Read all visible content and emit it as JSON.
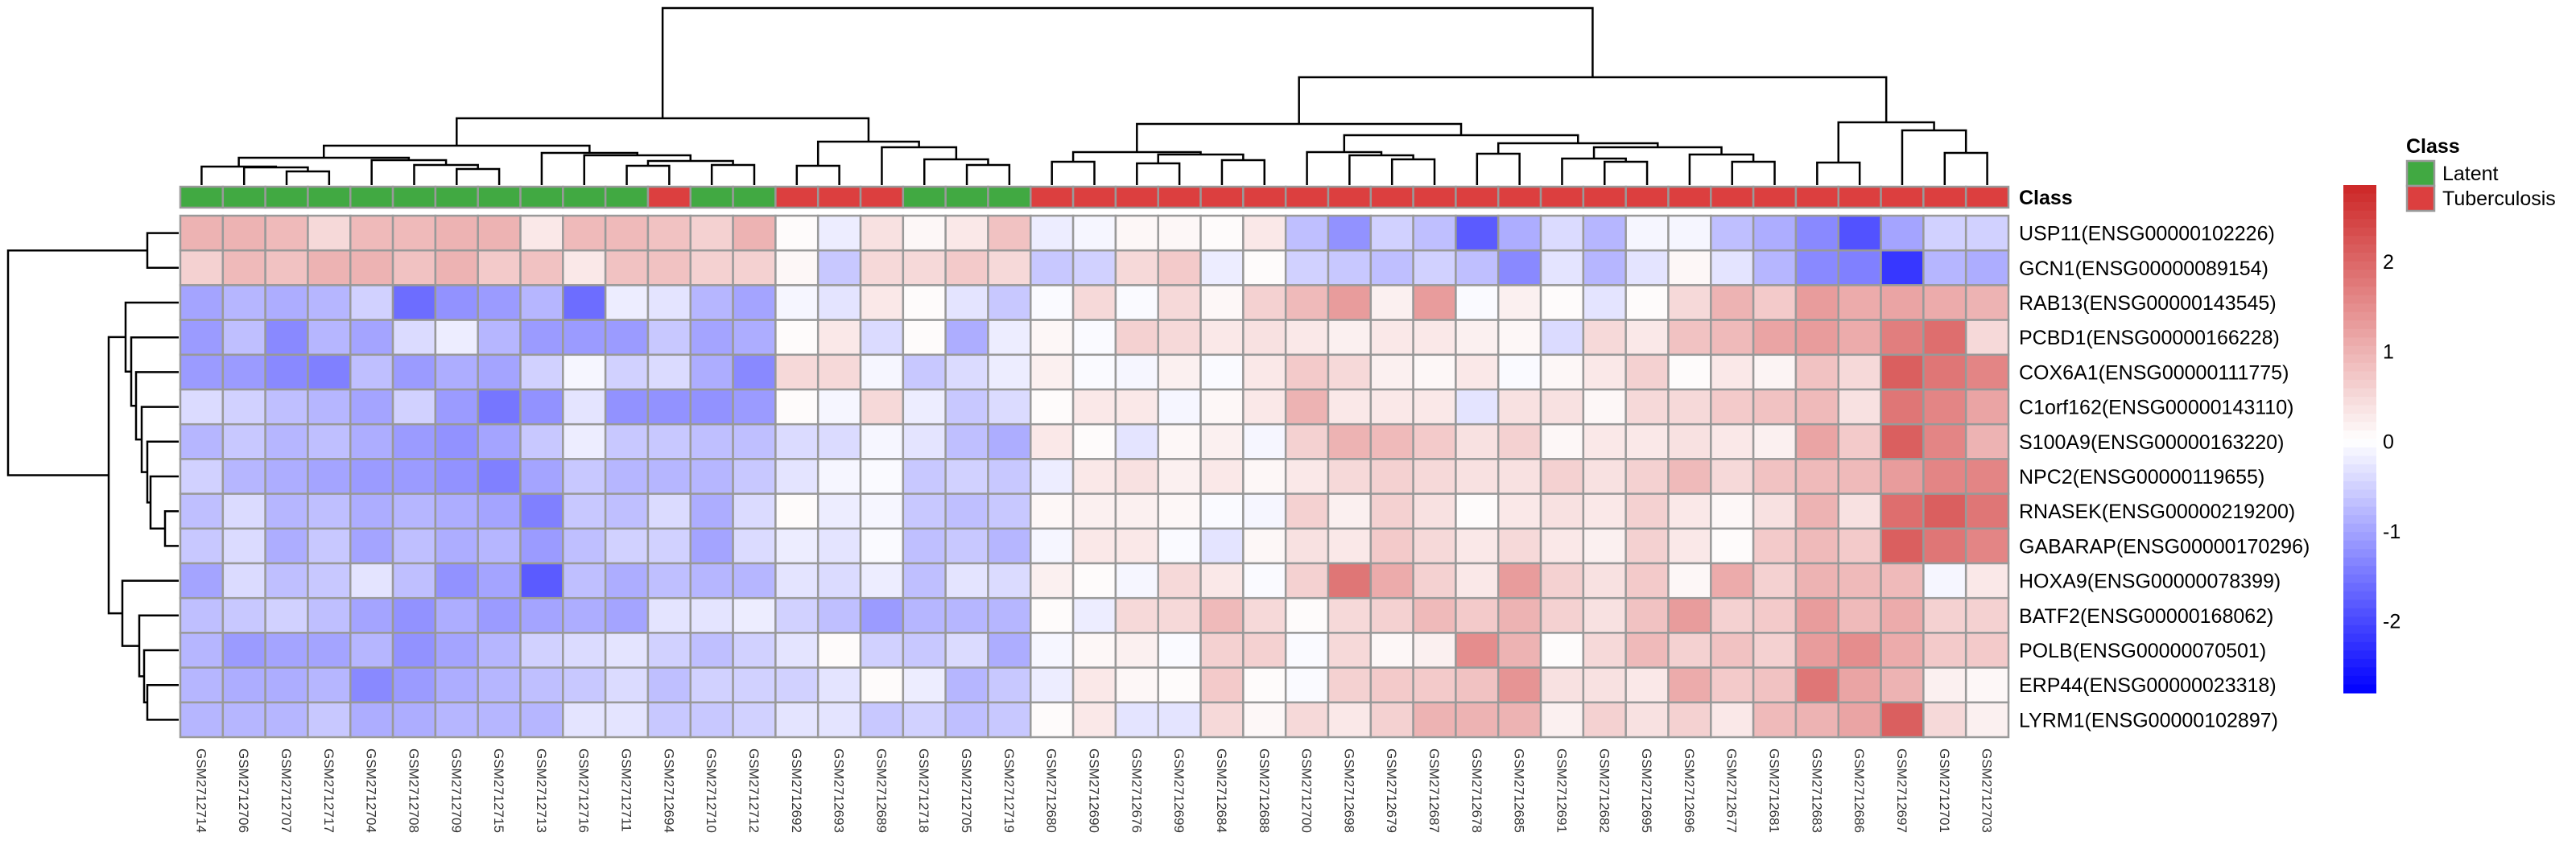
{
  "chart_data": {
    "type": "heatmap",
    "rows": [
      "USP11(ENSG00000102226)",
      "GCN1(ENSG00000089154)",
      "RAB13(ENSG00000143545)",
      "PCBD1(ENSG00000166228)",
      "COX6A1(ENSG00000111775)",
      "C1orf162(ENSG00000143110)",
      "S100A9(ENSG00000163220)",
      "NPC2(ENSG00000119655)",
      "RNASEK(ENSG00000219200)",
      "GABARAP(ENSG00000170296)",
      "HOXA9(ENSG00000078399)",
      "BATF2(ENSG00000168062)",
      "POLB(ENSG00000070501)",
      "ERP44(ENSG00000023318)",
      "LYRM1(ENSG00000102897)"
    ],
    "columns": [
      "GSM2712714",
      "GSM2712706",
      "GSM2712707",
      "GSM2712717",
      "GSM2712704",
      "GSM2712708",
      "GSM2712709",
      "GSM2712715",
      "GSM2712713",
      "GSM2712716",
      "GSM2712711",
      "GSM2712694",
      "GSM2712710",
      "GSM2712712",
      "GSM2712692",
      "GSM2712693",
      "GSM2712689",
      "GSM2712718",
      "GSM2712705",
      "GSM2712719",
      "GSM2712680",
      "GSM2712690",
      "GSM2712676",
      "GSM2712699",
      "GSM2712684",
      "GSM2712688",
      "GSM2712700",
      "GSM2712698",
      "GSM2712679",
      "GSM2712687",
      "GSM2712678",
      "GSM2712685",
      "GSM2712691",
      "GSM2712682",
      "GSM2712695",
      "GSM2712696",
      "GSM2712677",
      "GSM2712681",
      "GSM2712683",
      "GSM2712686",
      "GSM2712697",
      "GSM2712701",
      "GSM2712703"
    ],
    "column_class": [
      "Latent",
      "Latent",
      "Latent",
      "Latent",
      "Latent",
      "Latent",
      "Latent",
      "Latent",
      "Latent",
      "Latent",
      "Latent",
      "Tuberculosis",
      "Latent",
      "Latent",
      "Tuberculosis",
      "Tuberculosis",
      "Tuberculosis",
      "Latent",
      "Latent",
      "Latent",
      "Tuberculosis",
      "Tuberculosis",
      "Tuberculosis",
      "Tuberculosis",
      "Tuberculosis",
      "Tuberculosis",
      "Tuberculosis",
      "Tuberculosis",
      "Tuberculosis",
      "Tuberculosis",
      "Tuberculosis",
      "Tuberculosis",
      "Tuberculosis",
      "Tuberculosis",
      "Tuberculosis",
      "Tuberculosis",
      "Tuberculosis",
      "Tuberculosis",
      "Tuberculosis",
      "Tuberculosis",
      "Tuberculosis",
      "Tuberculosis",
      "Tuberculosis"
    ],
    "values": [
      [
        1.0,
        1.0,
        0.9,
        0.5,
        0.9,
        0.9,
        1.0,
        1.0,
        0.3,
        0.9,
        0.9,
        0.8,
        0.6,
        1.0,
        0.05,
        -0.2,
        0.4,
        0.1,
        0.3,
        0.8,
        -0.2,
        -0.1,
        0.1,
        0.1,
        0.05,
        0.3,
        -0.7,
        -1.2,
        -0.5,
        -0.7,
        -1.8,
        -0.9,
        -0.4,
        -0.8,
        -0.1,
        -0.1,
        -0.7,
        -0.9,
        -1.3,
        -1.9,
        -1.0,
        -0.5,
        -0.5
      ],
      [
        0.6,
        0.9,
        0.8,
        1.0,
        1.0,
        0.8,
        1.0,
        0.7,
        0.8,
        0.3,
        0.8,
        0.8,
        0.6,
        0.6,
        0.1,
        -0.6,
        0.5,
        0.5,
        0.7,
        0.5,
        -0.6,
        -0.5,
        0.5,
        0.7,
        -0.2,
        0.05,
        -0.5,
        -0.6,
        -0.7,
        -0.5,
        -0.7,
        -1.3,
        -0.3,
        -0.8,
        -0.3,
        0.1,
        -0.3,
        -0.8,
        -1.3,
        -1.4,
        -2.2,
        -0.8,
        -0.9
      ],
      [
        -1.0,
        -0.8,
        -0.9,
        -0.8,
        -0.5,
        -1.6,
        -1.2,
        -1.1,
        -0.8,
        -1.6,
        -0.2,
        -0.3,
        -0.8,
        -1.0,
        -0.1,
        -0.3,
        0.3,
        0.05,
        -0.3,
        -0.6,
        -0.05,
        0.5,
        -0.05,
        0.5,
        0.1,
        0.6,
        0.9,
        1.3,
        0.2,
        1.3,
        -0.05,
        0.2,
        0.05,
        -0.3,
        0.05,
        0.5,
        1.0,
        0.7,
        1.3,
        1.1,
        1.2,
        1.1,
        1.0
      ],
      [
        -1.1,
        -0.7,
        -1.3,
        -0.8,
        -1.0,
        -0.4,
        -0.2,
        -0.8,
        -1.1,
        -1.1,
        -1.1,
        -0.6,
        -1.0,
        -0.9,
        0.05,
        0.3,
        -0.4,
        0.05,
        -0.9,
        -0.2,
        0.1,
        -0.05,
        0.6,
        0.5,
        0.3,
        0.4,
        0.3,
        0.2,
        0.3,
        0.3,
        0.2,
        0.1,
        -0.4,
        0.5,
        0.3,
        0.8,
        0.9,
        1.2,
        1.3,
        1.1,
        1.7,
        1.9,
        0.5
      ],
      [
        -1.1,
        -1.1,
        -1.3,
        -1.4,
        -0.7,
        -1.1,
        -0.9,
        -1.0,
        -0.5,
        -0.1,
        -0.5,
        -0.4,
        -0.9,
        -1.3,
        0.5,
        0.5,
        -0.1,
        -0.6,
        -0.4,
        -0.2,
        0.2,
        -0.05,
        -0.1,
        0.2,
        -0.05,
        0.3,
        0.7,
        0.5,
        0.2,
        0.1,
        0.3,
        -0.05,
        0.1,
        0.3,
        0.6,
        0.05,
        0.3,
        0.15,
        0.8,
        0.5,
        2.1,
        1.8,
        1.6
      ],
      [
        -0.4,
        -0.5,
        -0.7,
        -0.8,
        -1.0,
        -0.5,
        -1.1,
        -1.5,
        -1.2,
        -0.3,
        -1.2,
        -1.2,
        -1.2,
        -1.1,
        0.05,
        -0.1,
        0.5,
        -0.2,
        -0.6,
        -0.4,
        0.05,
        0.3,
        0.3,
        -0.1,
        0.1,
        0.3,
        1.0,
        0.3,
        0.3,
        0.3,
        -0.3,
        0.4,
        0.4,
        0.1,
        0.5,
        0.5,
        0.7,
        0.8,
        0.9,
        0.4,
        1.8,
        1.6,
        1.2
      ],
      [
        -0.8,
        -0.6,
        -0.8,
        -0.7,
        -0.9,
        -1.1,
        -1.2,
        -1.0,
        -0.6,
        -0.2,
        -0.6,
        -0.6,
        -0.7,
        -0.7,
        -0.4,
        -0.4,
        -0.1,
        -0.3,
        -0.7,
        -0.9,
        0.3,
        0.05,
        -0.3,
        0.1,
        0.2,
        -0.1,
        0.6,
        1.0,
        0.9,
        0.7,
        0.4,
        0.6,
        0.1,
        0.3,
        0.3,
        0.4,
        0.3,
        0.2,
        1.2,
        0.7,
        2.1,
        1.6,
        1.0
      ],
      [
        -0.5,
        -0.8,
        -0.9,
        -1.0,
        -1.1,
        -1.1,
        -1.2,
        -1.4,
        -1.0,
        -0.6,
        -0.8,
        -0.8,
        -0.8,
        -0.6,
        -0.3,
        -0.1,
        -0.05,
        -0.6,
        -0.5,
        -0.6,
        -0.2,
        0.3,
        0.4,
        0.2,
        0.3,
        0.1,
        0.3,
        0.5,
        0.6,
        0.5,
        0.4,
        0.4,
        0.6,
        0.4,
        0.6,
        0.9,
        0.5,
        0.8,
        0.9,
        0.9,
        1.3,
        1.6,
        1.6
      ],
      [
        -0.7,
        -0.4,
        -0.8,
        -0.7,
        -0.9,
        -0.8,
        -0.9,
        -1.0,
        -1.4,
        -0.6,
        -0.7,
        -0.4,
        -0.9,
        -0.4,
        0.05,
        -0.2,
        -0.1,
        -0.6,
        -0.7,
        -0.6,
        0.1,
        0.2,
        0.2,
        0.1,
        -0.05,
        -0.1,
        0.6,
        0.2,
        0.6,
        0.4,
        0.05,
        0.3,
        0.4,
        0.3,
        0.6,
        0.3,
        0.1,
        0.4,
        1.0,
        0.4,
        1.9,
        2.1,
        1.8
      ],
      [
        -0.6,
        -0.4,
        -0.9,
        -0.6,
        -1.0,
        -0.7,
        -0.9,
        -0.8,
        -1.1,
        -0.7,
        -0.5,
        -0.5,
        -1.0,
        -0.4,
        -0.2,
        -0.3,
        -0.05,
        -0.7,
        -0.6,
        -0.8,
        -0.1,
        0.3,
        0.3,
        -0.05,
        -0.3,
        0.1,
        0.4,
        0.3,
        0.7,
        0.5,
        0.3,
        0.5,
        0.3,
        0.2,
        0.6,
        0.3,
        0.05,
        0.7,
        0.9,
        0.7,
        2.1,
        1.8,
        1.6
      ],
      [
        -1.0,
        -0.4,
        -0.7,
        -0.6,
        -0.3,
        -0.7,
        -1.2,
        -1.0,
        -1.8,
        -0.7,
        -0.9,
        -0.7,
        -0.8,
        -0.8,
        -0.3,
        -0.4,
        -0.2,
        -0.7,
        -0.3,
        -0.4,
        0.2,
        0.05,
        -0.1,
        0.5,
        0.3,
        -0.05,
        0.6,
        1.8,
        1.1,
        0.6,
        0.3,
        1.3,
        0.6,
        0.4,
        0.7,
        0.1,
        1.1,
        0.6,
        1.0,
        0.9,
        0.9,
        -0.1,
        0.3
      ],
      [
        -0.7,
        -0.6,
        -0.5,
        -0.7,
        -1.0,
        -1.2,
        -0.9,
        -1.1,
        -1.0,
        -0.9,
        -1.0,
        -0.3,
        -0.3,
        -0.2,
        -0.5,
        -0.7,
        -1.1,
        -0.8,
        -0.8,
        -0.8,
        0.05,
        -0.2,
        0.5,
        0.5,
        0.9,
        0.5,
        0.05,
        0.5,
        0.6,
        0.9,
        0.7,
        1.0,
        0.6,
        0.4,
        0.8,
        1.3,
        0.6,
        0.7,
        1.3,
        0.9,
        1.1,
        0.6,
        0.6
      ],
      [
        -0.8,
        -1.1,
        -1.0,
        -1.0,
        -0.8,
        -1.2,
        -1.0,
        -0.8,
        -0.5,
        -0.4,
        -0.3,
        -0.5,
        -0.7,
        -0.5,
        -0.3,
        0.05,
        -0.5,
        -0.6,
        -0.4,
        -0.9,
        -0.1,
        0.1,
        0.2,
        -0.05,
        0.6,
        0.6,
        -0.05,
        0.5,
        0.1,
        0.2,
        1.5,
        1.0,
        0.05,
        0.5,
        0.9,
        0.6,
        0.8,
        0.6,
        1.3,
        1.5,
        1.1,
        0.7,
        0.7
      ],
      [
        -0.8,
        -0.9,
        -0.9,
        -0.8,
        -1.3,
        -1.1,
        -0.9,
        -0.8,
        -0.7,
        -0.6,
        -0.4,
        -0.7,
        -0.5,
        -0.5,
        -0.5,
        -0.3,
        0.05,
        -0.2,
        -0.8,
        -0.6,
        -0.2,
        0.3,
        0.1,
        0.05,
        0.7,
        0.05,
        -0.05,
        0.6,
        0.7,
        0.7,
        0.8,
        1.4,
        0.4,
        0.4,
        0.3,
        1.1,
        0.7,
        0.8,
        1.8,
        1.2,
        1.0,
        0.2,
        0.1
      ],
      [
        -0.8,
        -0.8,
        -0.8,
        -0.6,
        -0.9,
        -0.9,
        -0.8,
        -0.8,
        -0.8,
        -0.3,
        -0.3,
        -0.6,
        -0.6,
        -0.5,
        -0.3,
        -0.3,
        -0.6,
        -0.5,
        -0.7,
        -0.6,
        0.05,
        0.3,
        -0.3,
        -0.3,
        0.5,
        0.1,
        0.5,
        0.3,
        0.6,
        1.0,
        1.0,
        1.0,
        0.2,
        0.6,
        0.4,
        0.6,
        0.3,
        0.9,
        1.0,
        1.2,
        2.1,
        0.5,
        0.2
      ]
    ],
    "annotation_title": "Class",
    "class_legend": [
      {
        "label": "Latent",
        "color": "#41A942"
      },
      {
        "label": "Tuberculosis",
        "color": "#DC3F3F"
      }
    ],
    "color_scale": {
      "low": "#0000FF",
      "mid": "#FFFFFF",
      "high": "#CD2626",
      "range": [
        -2.8,
        2.85
      ],
      "ticks": [
        "2",
        "1",
        "0",
        "-1",
        "-2"
      ],
      "tick_values": [
        2,
        1,
        0,
        -1,
        -2
      ]
    },
    "cell_border_color": "#999999",
    "row_dendrogram": true,
    "column_dendrogram": true
  }
}
